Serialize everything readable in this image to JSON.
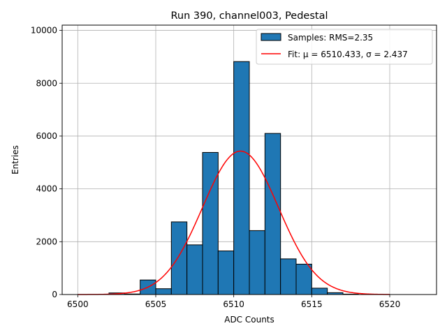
{
  "chart_data": {
    "type": "bar",
    "title": "Run 390, channel003, Pedestal",
    "xlabel": "ADC Counts",
    "ylabel": "Entries",
    "xlim": [
      6499,
      6523
    ],
    "ylim": [
      0,
      10200
    ],
    "xticks": [
      6500,
      6505,
      6510,
      6515,
      6520
    ],
    "yticks": [
      0,
      2000,
      4000,
      6000,
      8000,
      10000
    ],
    "grid": true,
    "legend_position": "top-right",
    "bin_width": 1,
    "bins": [
      {
        "left": 6502,
        "count": 60
      },
      {
        "left": 6503,
        "count": 20
      },
      {
        "left": 6504,
        "count": 550
      },
      {
        "left": 6505,
        "count": 220
      },
      {
        "left": 6506,
        "count": 2750
      },
      {
        "left": 6507,
        "count": 1880
      },
      {
        "left": 6508,
        "count": 5380
      },
      {
        "left": 6509,
        "count": 1650
      },
      {
        "left": 6510,
        "count": 8820
      },
      {
        "left": 6511,
        "count": 2420
      },
      {
        "left": 6512,
        "count": 6100
      },
      {
        "left": 6513,
        "count": 1350
      },
      {
        "left": 6514,
        "count": 1150
      },
      {
        "left": 6515,
        "count": 240
      },
      {
        "left": 6516,
        "count": 70
      },
      {
        "left": 6517,
        "count": 15
      }
    ],
    "fit": {
      "mu": 6510.433,
      "sigma": 2.437,
      "amplitude": 5430,
      "x_range": [
        6500,
        6520
      ]
    },
    "legend": [
      {
        "label": "Samples: RMS=2.35",
        "kind": "patch",
        "color": "#1f77b4"
      },
      {
        "label": "Fit: μ = 6510.433, σ = 2.437",
        "kind": "line",
        "color": "#ff0000"
      }
    ],
    "colors": {
      "bar": "#1f77b4",
      "edge": "#000000",
      "fit": "#ff0000",
      "grid": "#b0b0b0"
    }
  }
}
